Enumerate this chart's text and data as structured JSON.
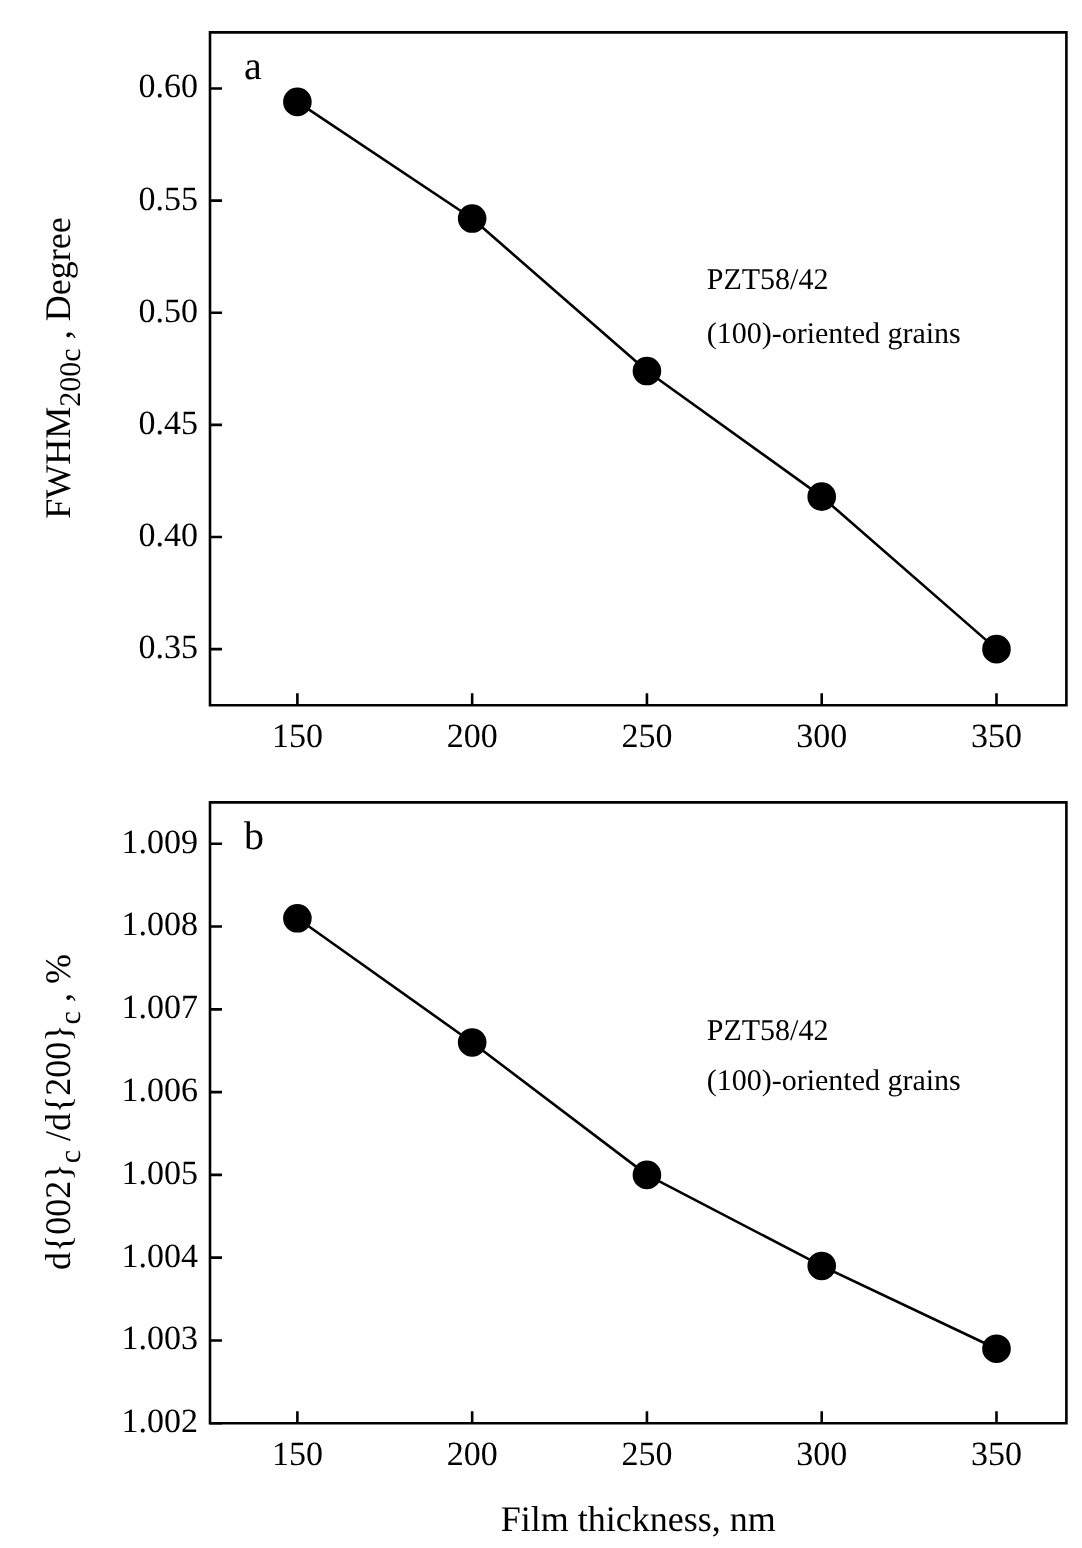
{
  "chart_data": [
    {
      "type": "line",
      "ylabel": "FWHM$_{200c}$ , Degree",
      "x": [
        150,
        200,
        250,
        300,
        350
      ],
      "series": [
        {
          "color": "#000000",
          "values": [
            0.594,
            0.542,
            0.474,
            0.418,
            0.35
          ]
        }
      ],
      "xlim": [
        125,
        370
      ],
      "xticks": [
        150,
        200,
        250,
        300,
        350
      ],
      "ylim": [
        0.325,
        0.625
      ],
      "yticks": [
        {
          "value": 0.35,
          "label": "0.35"
        },
        {
          "value": 0.4,
          "label": "0.40"
        },
        {
          "value": 0.45,
          "label": "0.45"
        },
        {
          "value": 0.5,
          "label": "0.50"
        },
        {
          "value": 0.55,
          "label": "0.55"
        },
        {
          "value": 0.6,
          "label": "0.60"
        }
      ],
      "marker": "circle",
      "line_style": "solid",
      "grid": false,
      "legend": false,
      "annotations": [
        "a",
        "PZT58/42",
        "(100)-oriented grains"
      ]
    },
    {
      "type": "line",
      "xlabel": "Film thickness, nm",
      "ylabel": "d{002}$_{c}$ /d{200}$_{c}$ , %",
      "x": [
        150,
        200,
        250,
        300,
        350
      ],
      "series": [
        {
          "color": "#000000",
          "values": [
            1.0081,
            1.0066,
            1.005,
            1.0039,
            1.0029
          ]
        }
      ],
      "xlim": [
        125,
        370
      ],
      "xticks": [
        150,
        200,
        250,
        300,
        350
      ],
      "ylim": [
        1.002,
        1.0095
      ],
      "yticks": [
        1.002,
        1.003,
        1.004,
        1.005,
        1.006,
        1.007,
        1.008,
        1.009
      ],
      "marker": "circle",
      "line_style": "solid",
      "grid": false,
      "legend": false,
      "annotations": [
        "b",
        "PZT58/42",
        "(100)-oriented grains"
      ]
    }
  ]
}
